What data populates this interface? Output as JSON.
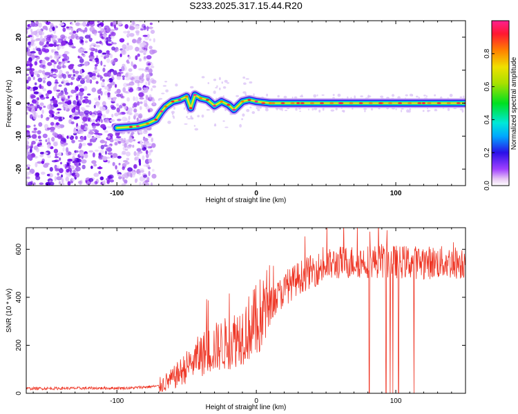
{
  "title": "S233.2025.317.15.44.R20",
  "colors": {
    "snr_line": "#ee3322",
    "axis": "#000000",
    "background": "#ffffff"
  },
  "chart_data": [
    {
      "type": "heatmap",
      "name": "spectrogram",
      "xlabel": "Height of straight line (km)",
      "ylabel": "Frequency (Hz)",
      "xlim": [
        -165,
        150
      ],
      "ylim": [
        -25,
        25
      ],
      "xticks": [
        -100,
        0,
        100
      ],
      "xtick_labels": [
        "-100",
        "0",
        "100"
      ],
      "yticks": [
        -20,
        -10,
        0,
        10,
        20
      ],
      "ytick_labels": [
        "-20",
        "-10",
        "0",
        "10",
        "20"
      ],
      "colorbar": {
        "label": "Normalized spectral amplitude",
        "range": [
          0,
          1
        ],
        "ticks": [
          0.0,
          0.2,
          0.4,
          0.6,
          0.8
        ],
        "tick_labels": [
          "0.0",
          "0.2",
          "0.4",
          "0.6",
          "0.8"
        ]
      },
      "noise_region_x": [
        -165,
        -73
      ],
      "signal_track": [
        {
          "x": -100,
          "f": -7.5
        },
        {
          "x": -90,
          "f": -7.2
        },
        {
          "x": -85,
          "f": -7.0
        },
        {
          "x": -78,
          "f": -6.2
        },
        {
          "x": -72,
          "f": -5.0
        },
        {
          "x": -68,
          "f": -2.5
        },
        {
          "x": -65,
          "f": -1.0
        },
        {
          "x": -60,
          "f": 0.5
        },
        {
          "x": -55,
          "f": 1.0
        },
        {
          "x": -50,
          "f": 2.0
        },
        {
          "x": -47,
          "f": -1.5
        },
        {
          "x": -44,
          "f": 2.5
        },
        {
          "x": -40,
          "f": 1.5
        },
        {
          "x": -35,
          "f": 1.0
        },
        {
          "x": -30,
          "f": -0.8
        },
        {
          "x": -25,
          "f": 0.5
        },
        {
          "x": -20,
          "f": -0.5
        },
        {
          "x": -16,
          "f": -2.0
        },
        {
          "x": -10,
          "f": 0.5
        },
        {
          "x": -5,
          "f": 1.0
        },
        {
          "x": 0,
          "f": 0.5
        },
        {
          "x": 10,
          "f": 0.0
        },
        {
          "x": 30,
          "f": 0.0
        },
        {
          "x": 60,
          "f": 0.0
        },
        {
          "x": 90,
          "f": 0.0
        },
        {
          "x": 120,
          "f": 0.0
        },
        {
          "x": 150,
          "f": 0.0
        }
      ]
    },
    {
      "type": "line",
      "name": "snr",
      "xlabel": "Height of straight line (km)",
      "ylabel": "SNR (10 * v/v)",
      "xlim": [
        -165,
        150
      ],
      "ylim": [
        0,
        690
      ],
      "xticks": [
        -100,
        0,
        100
      ],
      "xtick_labels": [
        "-100",
        "0",
        "100"
      ],
      "yticks": [
        0,
        200,
        400,
        600
      ],
      "ytick_labels": [
        "0",
        "200",
        "400",
        "600"
      ],
      "envelope": [
        {
          "x": -165,
          "y": 20
        },
        {
          "x": -90,
          "y": 22
        },
        {
          "x": -70,
          "y": 30
        },
        {
          "x": -60,
          "y": 60
        },
        {
          "x": -50,
          "y": 110
        },
        {
          "x": -40,
          "y": 160
        },
        {
          "x": -30,
          "y": 190
        },
        {
          "x": -20,
          "y": 210
        },
        {
          "x": -10,
          "y": 250
        },
        {
          "x": 0,
          "y": 300
        },
        {
          "x": 10,
          "y": 370
        },
        {
          "x": 20,
          "y": 430
        },
        {
          "x": 30,
          "y": 480
        },
        {
          "x": 40,
          "y": 510
        },
        {
          "x": 50,
          "y": 530
        },
        {
          "x": 60,
          "y": 545
        },
        {
          "x": 80,
          "y": 550
        },
        {
          "x": 100,
          "y": 548
        },
        {
          "x": 120,
          "y": 545
        },
        {
          "x": 150,
          "y": 545
        }
      ],
      "dropouts_x": [
        81,
        93,
        96,
        98,
        102,
        113
      ]
    }
  ]
}
